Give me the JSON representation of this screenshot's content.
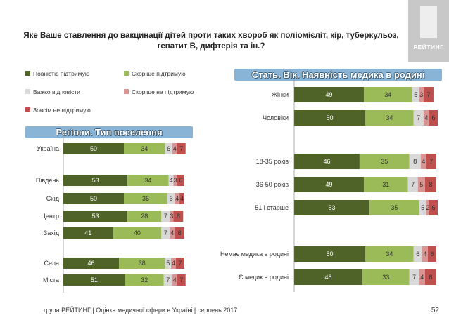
{
  "title": "Яке Ваше ставлення до вакцинації дітей проти таких хвороб як поліомієліт, кір, туберкульоз, гепатит В, дифтерія та ін.?",
  "logo_text": "РЕЙТИНГ",
  "footer": "група РЕЙТИНГ  |  Оцінка медичної сфери в Україні  |  серпень 2017",
  "page_number": "52",
  "colors": {
    "full_support": "#4f6228",
    "rather_support": "#9bbb59",
    "hard_to_say": "#d9d9d9",
    "rather_not": "#d99594",
    "not_at_all": "#c0504d",
    "banner": "#8ab4d6"
  },
  "chart_data": {
    "type": "bar",
    "stacked": true,
    "orientation": "horizontal",
    "legend": [
      {
        "name": "Повністю підтримую",
        "color": "#4f6228"
      },
      {
        "name": "Скоріше підтримую",
        "color": "#9bbb59"
      },
      {
        "name": "Важко відповісти",
        "color": "#d9d9d9"
      },
      {
        "name": "Скоріше не підтримую",
        "color": "#d99594"
      },
      {
        "name": "Зовсім не підтримую",
        "color": "#c0504d"
      }
    ],
    "panels": [
      {
        "heading": "Регіони. Тип поселення",
        "rows": [
          {
            "label": "Україна",
            "values": [
              50,
              34,
              6,
              4,
              7
            ]
          },
          {
            "label": "Південь",
            "values": [
              53,
              34,
              4,
              3,
              6
            ]
          },
          {
            "label": "Схід",
            "values": [
              50,
              36,
              6,
              4,
              4
            ]
          },
          {
            "label": "Центр",
            "values": [
              53,
              28,
              7,
              3,
              8
            ]
          },
          {
            "label": "Захід",
            "values": [
              41,
              40,
              7,
              4,
              8
            ]
          },
          {
            "label": "Села",
            "values": [
              46,
              38,
              5,
              4,
              7
            ]
          },
          {
            "label": "Міста",
            "values": [
              51,
              32,
              7,
              4,
              7
            ]
          }
        ]
      },
      {
        "heading": "Стать. Вік. Наявність медика в родині",
        "rows": [
          {
            "label": "Жінки",
            "values": [
              49,
              34,
              5,
              3,
              7
            ]
          },
          {
            "label": "Чоловіки",
            "values": [
              50,
              34,
              7,
              4,
              6
            ]
          },
          {
            "label": "18-35 років",
            "values": [
              46,
              35,
              8,
              4,
              7
            ]
          },
          {
            "label": "36-50 років",
            "values": [
              49,
              31,
              7,
              5,
              8
            ]
          },
          {
            "label": "51 і старше",
            "values": [
              53,
              35,
              5,
              2,
              6
            ]
          },
          {
            "label": "Немає медика в родині",
            "values": [
              50,
              34,
              6,
              4,
              6
            ]
          },
          {
            "label": "Є медик в родині",
            "values": [
              48,
              33,
              7,
              4,
              8
            ]
          }
        ]
      }
    ]
  }
}
